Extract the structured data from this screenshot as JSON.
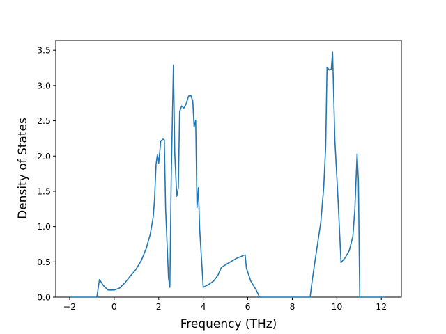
{
  "chart_data": {
    "type": "line",
    "xlabel": "Frequency (THz)",
    "ylabel": "Density of States",
    "color": "#1f77b4",
    "x": [
      -1.95,
      -0.78,
      -0.66,
      -0.5,
      -0.28,
      0,
      0.25,
      0.5,
      0.7,
      0.97,
      1.22,
      1.44,
      1.62,
      1.75,
      1.81,
      1.88,
      1.94,
      2.0,
      2.09,
      2.19,
      2.25,
      2.31,
      2.44,
      2.5,
      2.56,
      2.66,
      2.72,
      2.81,
      2.88,
      2.94,
      3.03,
      3.13,
      3.22,
      3.34,
      3.44,
      3.53,
      3.59,
      3.66,
      3.72,
      3.78,
      3.84,
      4.0,
      4.25,
      4.47,
      4.66,
      4.81,
      5.06,
      5.5,
      5.88,
      5.94,
      6.13,
      6.38,
      6.53,
      8.8,
      8.9,
      9.09,
      9.28,
      9.41,
      9.5,
      9.56,
      9.66,
      9.75,
      9.81,
      9.91,
      10.06,
      10.19,
      10.38,
      10.56,
      10.72,
      10.81,
      10.91,
      10.97,
      11.03,
      12.16
    ],
    "values": [
      0,
      0,
      0.25,
      0.17,
      0.1,
      0.1,
      0.13,
      0.21,
      0.29,
      0.39,
      0.52,
      0.69,
      0.89,
      1.13,
      1.37,
      1.88,
      2.02,
      1.9,
      2.21,
      2.24,
      2.23,
      1.25,
      0.27,
      0.14,
      1.65,
      3.29,
      2.04,
      1.43,
      1.55,
      2.63,
      2.71,
      2.68,
      2.73,
      2.85,
      2.86,
      2.78,
      2.41,
      2.51,
      1.27,
      1.55,
      0.96,
      0.14,
      0.18,
      0.23,
      0.31,
      0.42,
      0.47,
      0.55,
      0.6,
      0.41,
      0.23,
      0.1,
      0,
      0,
      0.25,
      0.66,
      1.06,
      1.55,
      2.14,
      3.26,
      3.22,
      3.23,
      3.47,
      2.24,
      1.35,
      0.49,
      0.56,
      0.66,
      0.86,
      1.25,
      2.03,
      1.65,
      0,
      0
    ],
    "xlim": [
      -2.625,
      12.9
    ],
    "ylim": [
      0,
      3.64
    ],
    "xticks": [
      {
        "value": -2,
        "label": "−2"
      },
      0,
      2,
      4,
      6,
      8,
      10,
      12
    ],
    "yticks": [
      {
        "value": 0,
        "label": "0.0"
      },
      {
        "value": 0.5,
        "label": "0.5"
      },
      {
        "value": 1,
        "label": "1.0"
      },
      {
        "value": 1.5,
        "label": "1.5"
      },
      {
        "value": 2,
        "label": "2.0"
      },
      {
        "value": 2.5,
        "label": "2.5"
      },
      {
        "value": 3,
        "label": "3.0"
      },
      {
        "value": 3.5,
        "label": "3.5"
      }
    ]
  }
}
